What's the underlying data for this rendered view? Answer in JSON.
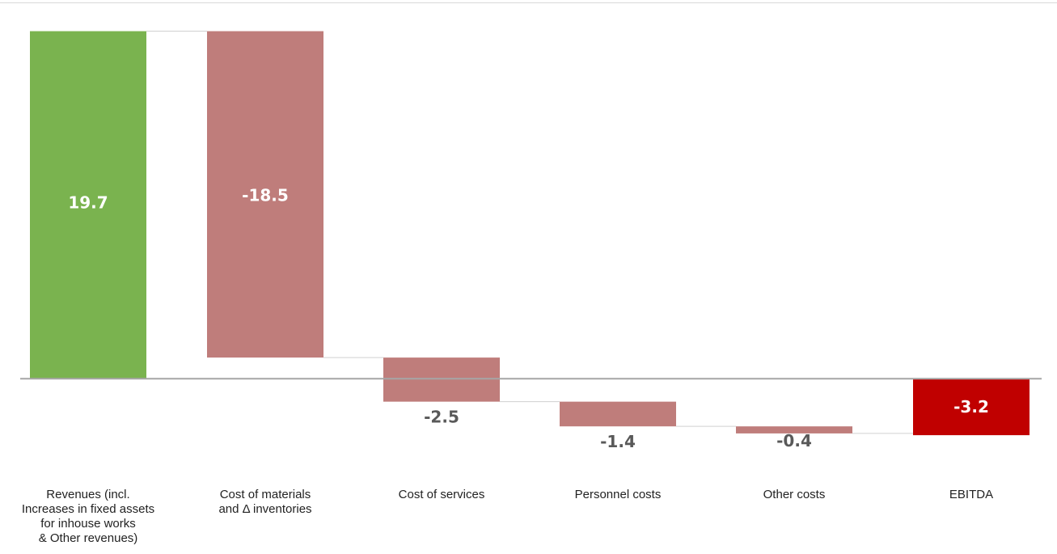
{
  "chart_data": {
    "type": "waterfall",
    "title": "",
    "xlabel": "",
    "ylabel": "",
    "grid": false,
    "legend": "none",
    "categories": [
      "Revenues (incl.\nIncreases in fixed assets\nfor inhouse works\n& Other revenues)",
      "Cost of materials\nand Δ inventories",
      "Cost of services",
      "Personnel costs",
      "Other costs",
      "EBITDA"
    ],
    "values": [
      19.7,
      -18.5,
      -2.5,
      -1.4,
      -0.4,
      -3.2
    ],
    "value_labels": [
      "19.7",
      "-18.5",
      "-2.5",
      "-1.4",
      "-0.4",
      "-3.2"
    ],
    "kinds": [
      "total",
      "delta",
      "delta",
      "delta",
      "delta",
      "total"
    ],
    "ylim": [
      -3.7,
      20
    ],
    "colors": {
      "revenue": "#7ab34f",
      "cost": "#bf7d7b",
      "ebitda": "#c00000",
      "connector": "#d0d0d0",
      "axis": "#a6a6a6",
      "label_on_bar": "#ffffff",
      "label_outside": "#595959"
    }
  }
}
